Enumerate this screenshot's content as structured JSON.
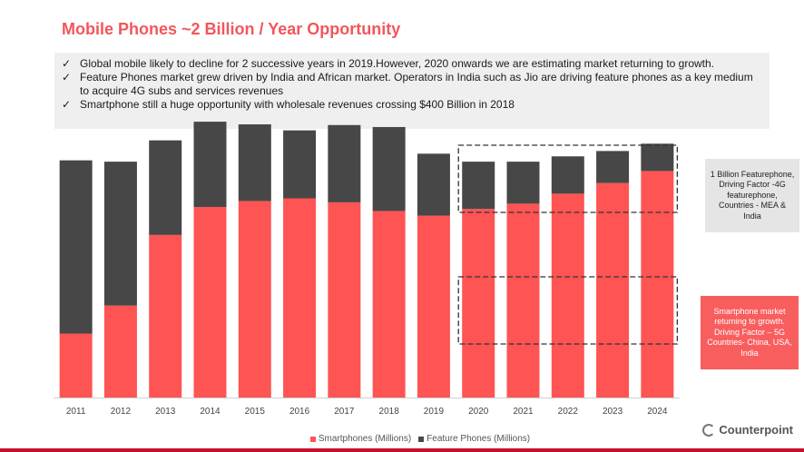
{
  "title": "Mobile Phones ~2 Billion / Year Opportunity",
  "bullets": [
    "Global mobile likely to decline for 2 successive years in 2019.However, 2020 onwards we are estimating market returning to growth.",
    "Feature Phones market grew driven by India and African market. Operators in India such as Jio are driving feature phones as a key medium to acquire 4G subs and services revenues",
    "Smartphone still a huge opportunity with wholesale revenues crossing $400 Billion in 2018"
  ],
  "check_glyph": "✓",
  "side_notes": {
    "feature": "1 Billion Featurephone, Driving Factor -4G featurephone, Countries - MEA & India",
    "smartphone": "Smartphone market returning to growth. Driving Factor – 5G Countries- China, USA, India"
  },
  "logo_text": "Counterpoint",
  "colors": {
    "title": "#f2565a",
    "smartphones": "#fe5454",
    "feature_phones": "#474747",
    "gray_note_bg": "#e5e5e5",
    "red_note_bg": "#f85e5e",
    "brand_bar": "#c8102e"
  },
  "chart_data": {
    "type": "bar",
    "stacked": true,
    "categories": [
      "2011",
      "2012",
      "2013",
      "2014",
      "2015",
      "2016",
      "2017",
      "2018",
      "2019",
      "2020",
      "2021",
      "2022",
      "2023",
      "2024"
    ],
    "series": [
      {
        "name": "Smartphones (Millions)",
        "values": [
          480,
          690,
          1220,
          1430,
          1475,
          1495,
          1465,
          1400,
          1365,
          1415,
          1455,
          1530,
          1610,
          1700
        ]
      },
      {
        "name": "Feature Phones (Millions)",
        "values": [
          1300,
          1080,
          710,
          640,
          575,
          510,
          580,
          630,
          465,
          355,
          315,
          280,
          240,
          205
        ]
      }
    ],
    "ylim": [
      0,
      2200
    ],
    "grid": false,
    "legend_position": "bottom",
    "annotations": [
      "dashed box 2020-2024 feature phones",
      "dashed box 2020-2024 smartphones"
    ]
  }
}
